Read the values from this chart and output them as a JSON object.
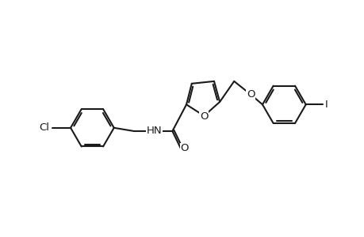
{
  "background_color": "#ffffff",
  "line_color": "#1a1a1a",
  "line_width": 1.5,
  "font_size": 9.5,
  "figsize": [
    4.6,
    3.0
  ],
  "dpi": 100,
  "xlim": [
    -4.8,
    6.0
  ],
  "ylim": [
    -2.2,
    2.2
  ]
}
